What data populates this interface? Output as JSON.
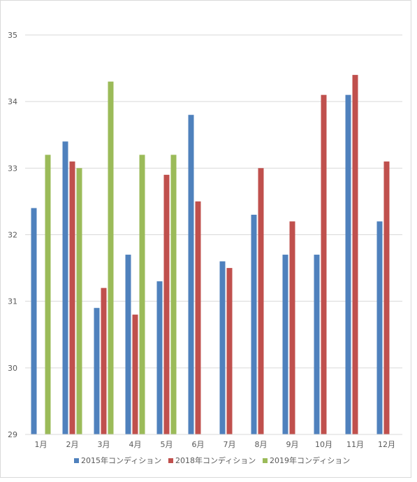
{
  "chart_data": {
    "type": "bar",
    "title": "",
    "xlabel": "",
    "ylabel": "",
    "ylim": [
      29,
      35
    ],
    "yticks": [
      29,
      30,
      31,
      32,
      33,
      34,
      35
    ],
    "ytick_labels": [
      "29",
      "30",
      "31",
      "32",
      "33",
      "34",
      "35"
    ],
    "grid": true,
    "legend_position": "bottom",
    "categories": [
      "1月",
      "2月",
      "3月",
      "4月",
      "5月",
      "6月",
      "7月",
      "8月",
      "9月",
      "10月",
      "11月",
      "12月"
    ],
    "series": [
      {
        "name": "2015年コンディション",
        "color": "#4f81bd",
        "values": [
          32.4,
          33.4,
          30.9,
          31.7,
          31.3,
          33.8,
          31.6,
          32.3,
          31.7,
          31.7,
          34.1,
          32.2
        ]
      },
      {
        "name": "2018年コンディション",
        "color": "#c0504d",
        "values": [
          null,
          33.1,
          31.2,
          30.8,
          32.9,
          32.5,
          31.5,
          33.0,
          32.2,
          34.1,
          34.4,
          33.1
        ]
      },
      {
        "name": "2019年コンディション",
        "color": "#9bbb59",
        "values": [
          33.2,
          33.0,
          34.3,
          33.2,
          33.2,
          null,
          null,
          null,
          null,
          null,
          null,
          null
        ]
      }
    ]
  }
}
